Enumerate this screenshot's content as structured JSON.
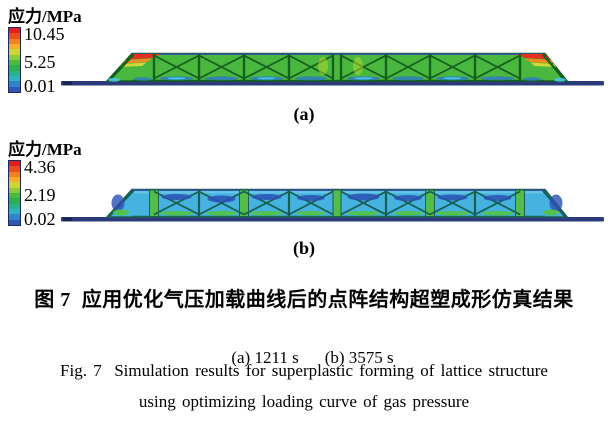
{
  "figure": {
    "legend_colors": [
      "#dd1f1f",
      "#ea4d22",
      "#f28024",
      "#f6ad2e",
      "#ccd438",
      "#8cc93e",
      "#4cba3e",
      "#2fae4f",
      "#2cb287",
      "#30b2c2",
      "#3084cc",
      "#3156b4"
    ],
    "colors": {
      "baseline": "#2b3a7a",
      "body_a": "#4ab83e",
      "body_b": "#45b2e0",
      "strut_dark": "#14601e",
      "strut_dark_b": "#175f50",
      "hot_red": "#e53020",
      "hot_orange": "#f28a22",
      "hot_yellow": "#cfd935",
      "patch_blue": "#2e78c8",
      "patch_cyan": "#49c8e8",
      "patch_navy": "#2a50b4",
      "patch_green": "#52bd48",
      "top_edge": "#33549f"
    },
    "panels": [
      {
        "label": "(a)",
        "time": "1211 s",
        "legend": {
          "title": "应力/MPa",
          "ticks": [
            "10.45",
            "5.25",
            "0.01"
          ]
        }
      },
      {
        "label": "(b)",
        "time": "3575 s",
        "legend": {
          "title": "应力/MPa",
          "ticks": [
            "4.36",
            "2.19",
            "0.02"
          ]
        }
      }
    ],
    "captions": {
      "cn": "图 7  应用优化气压加载曲线后的点阵结构超塑成形仿真结果",
      "sub_a": "(a) 1211 s",
      "sub_b": "(b) 3575 s",
      "en_line1": "Fig. 7  Simulation results for superplastic forming of lattice structure",
      "en_line2": "using optimizing loading curve of gas pressure"
    }
  },
  "chart_data": [
    {
      "type": "heatmap",
      "panel": "(a)",
      "quantity": "应力/MPa",
      "time": "1211 s",
      "scale_max": 10.45,
      "scale_mid": 5.25,
      "scale_min": 0.01,
      "colormap": "rainbow red=max to blue=min",
      "legend_position": "top-left",
      "content": "cross-section of superplastically formed lattice sandwich panel, mostly green (mid stress) with red hot spots at top corners and blue flat sheet baseline"
    },
    {
      "type": "heatmap",
      "panel": "(b)",
      "quantity": "应力/MPa",
      "time": "3575 s",
      "scale_max": 4.36,
      "scale_mid": 2.19,
      "scale_min": 0.02,
      "colormap": "rainbow red=max to blue=min",
      "legend_position": "top-left",
      "content": "same lattice cross-section, mostly cyan/low stress with green struts and dark blue patches"
    }
  ]
}
